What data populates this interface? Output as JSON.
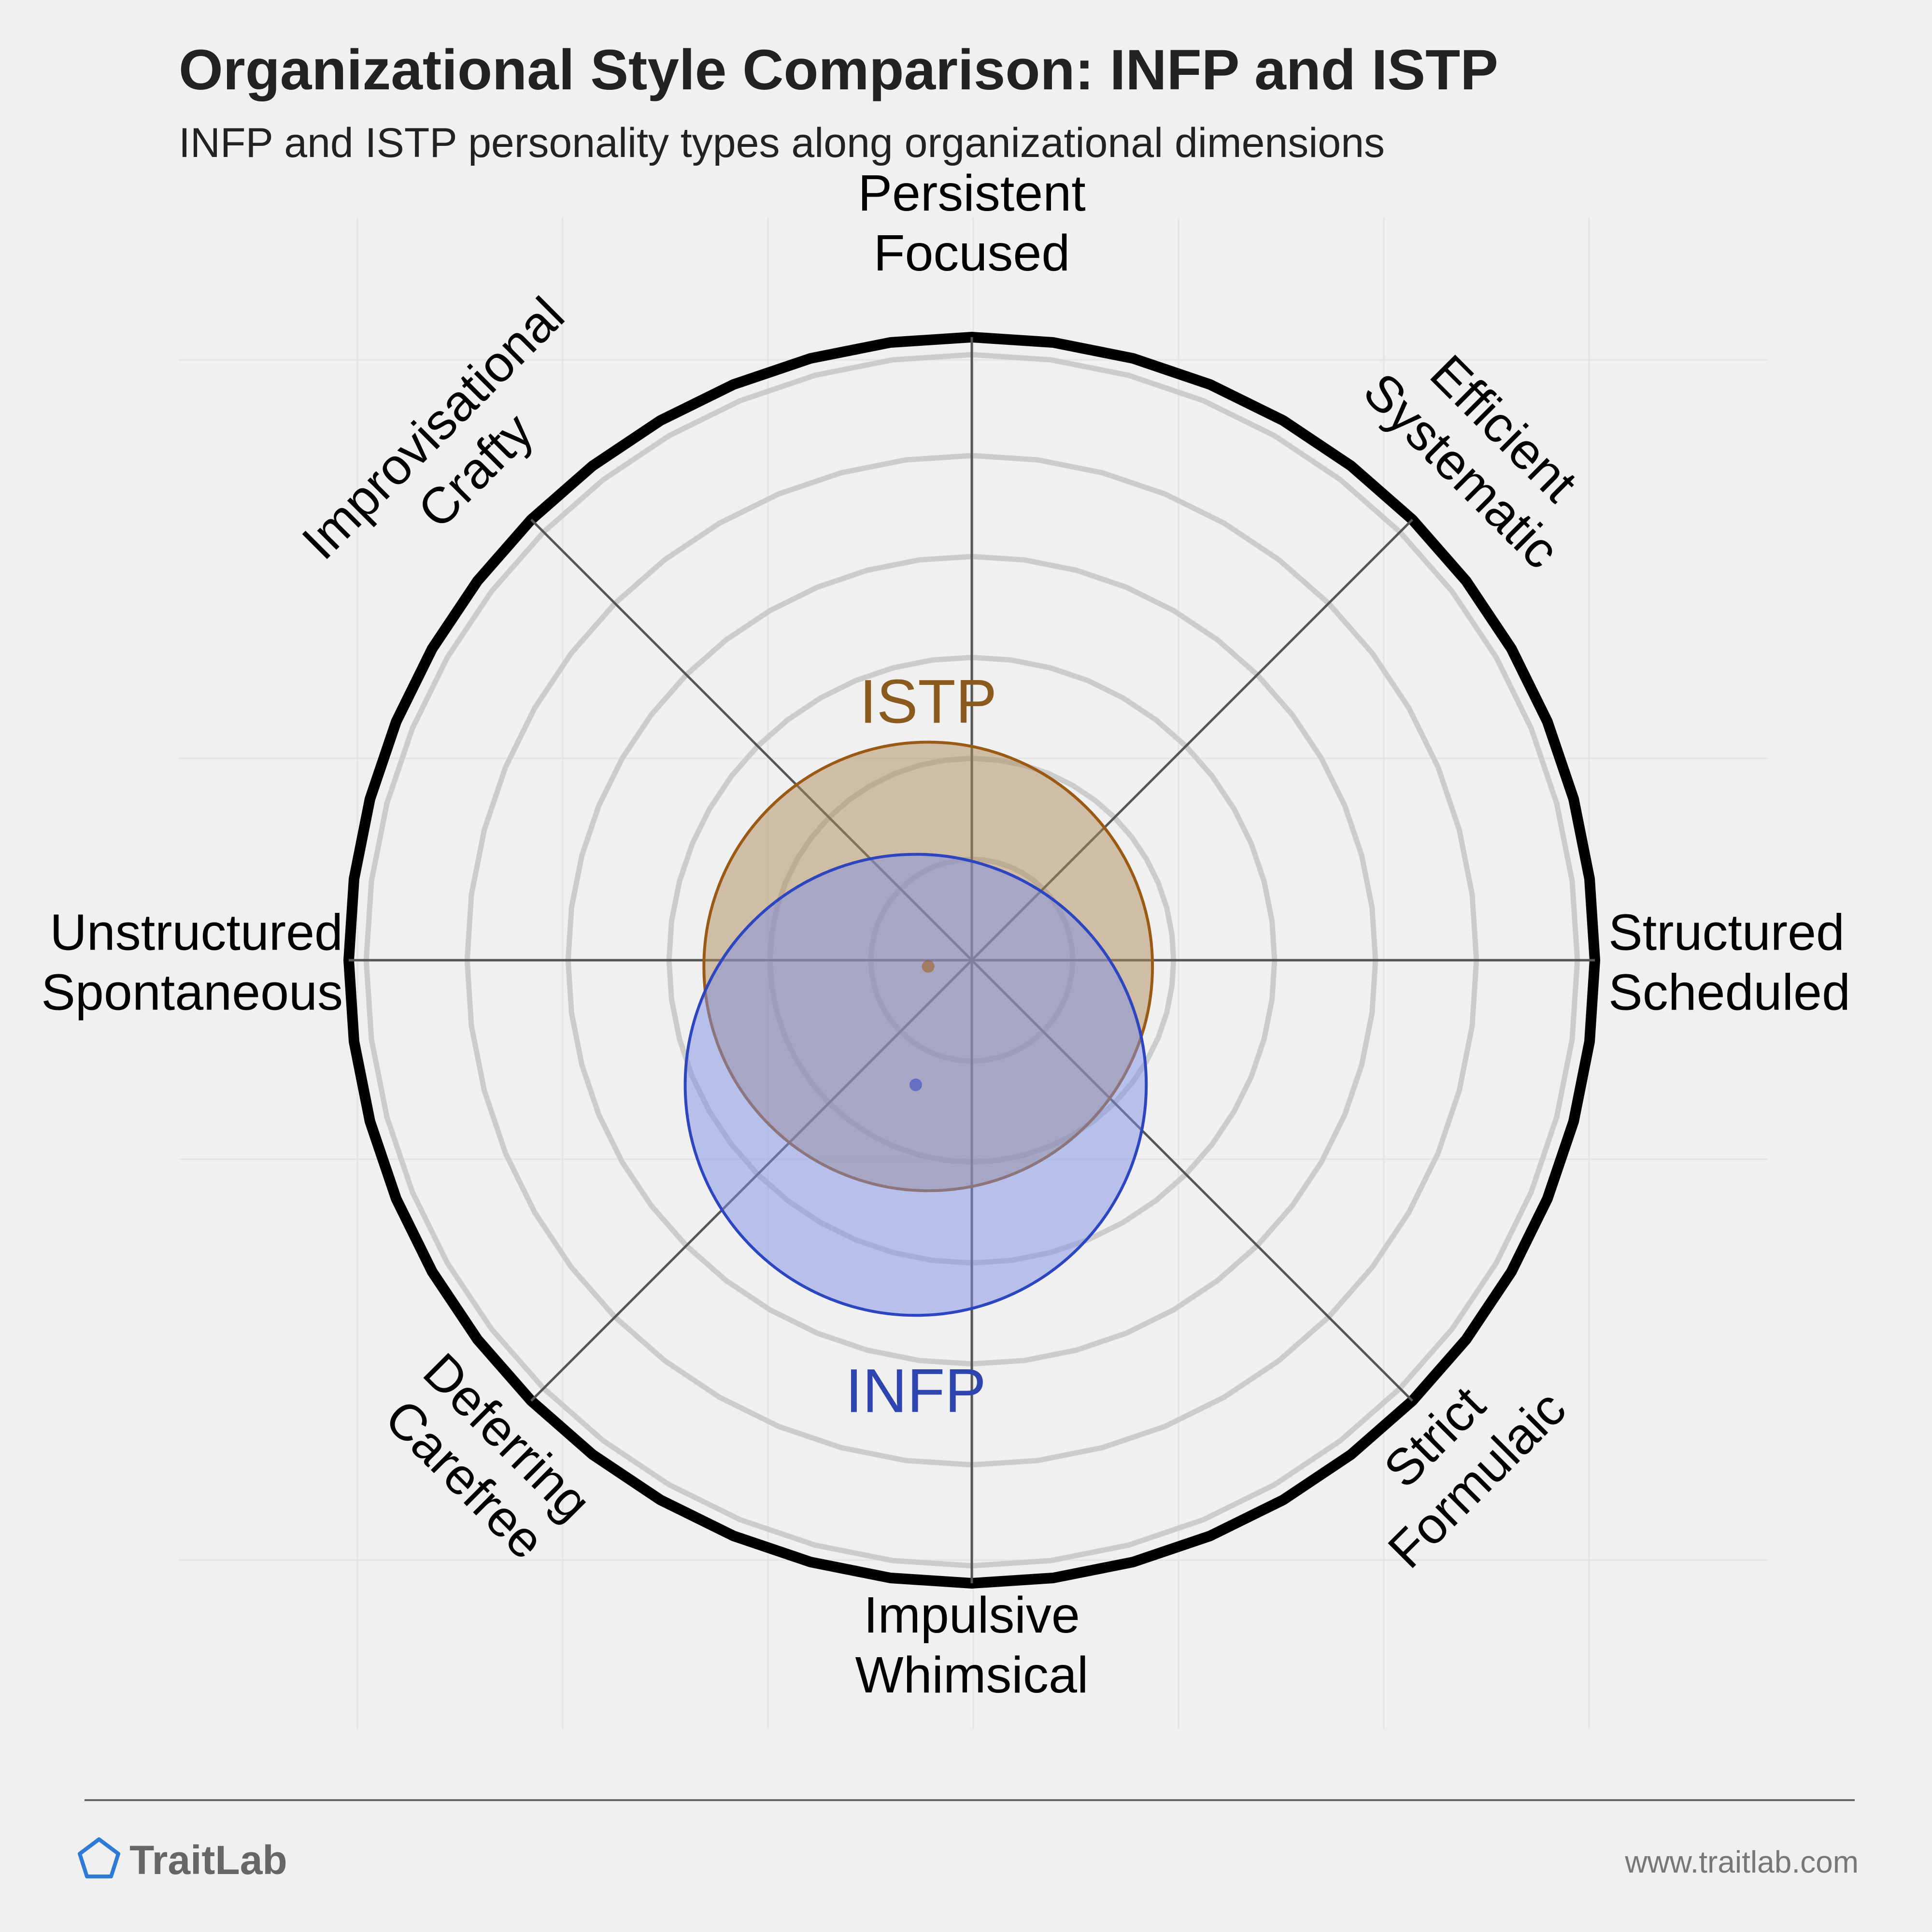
{
  "chart_data": {
    "type": "radar-bubble",
    "title": "Organizational Style Comparison: INFP and ISTP",
    "subtitle": "INFP and ISTP personality types along organizational dimensions",
    "axes": [
      {
        "id": "persistent",
        "lines": [
          "Persistent",
          "Focused"
        ]
      },
      {
        "id": "efficient",
        "lines": [
          "Efficient",
          "Systematic"
        ]
      },
      {
        "id": "structured",
        "lines": [
          "Structured",
          "Scheduled"
        ]
      },
      {
        "id": "strict",
        "lines": [
          "Strict",
          "Formulaic"
        ]
      },
      {
        "id": "impulsive",
        "lines": [
          "Impulsive",
          "Whimsical"
        ]
      },
      {
        "id": "deferring",
        "lines": [
          "Deferring",
          "Carefree"
        ]
      },
      {
        "id": "unstructured",
        "lines": [
          "Unstructured",
          "Spontaneous"
        ]
      },
      {
        "id": "improvisational",
        "lines": [
          "Improvisational",
          "Crafty"
        ]
      }
    ],
    "rings": 6,
    "series": [
      {
        "name": "ISTP",
        "x": -0.07,
        "y": -0.01,
        "spread": 0.36,
        "fill": "#b08a5a",
        "stroke": "#9a5a14",
        "label_color": "#8b5a1e",
        "label_pos": "above"
      },
      {
        "name": "INFP",
        "x": -0.09,
        "y": -0.2,
        "spread": 0.37,
        "fill": "#7e8fe6",
        "stroke": "#2e45c0",
        "label_color": "#2e45b0",
        "label_pos": "below"
      }
    ]
  },
  "footer": {
    "brand": "TraitLab",
    "url": "www.traitlab.com"
  },
  "colors": {
    "background": "#f0f0f0",
    "grid_ring": "#cccccc",
    "outer_ring": "#000000",
    "axis_line": "#555555",
    "brand_icon": "#2e7bd6"
  }
}
